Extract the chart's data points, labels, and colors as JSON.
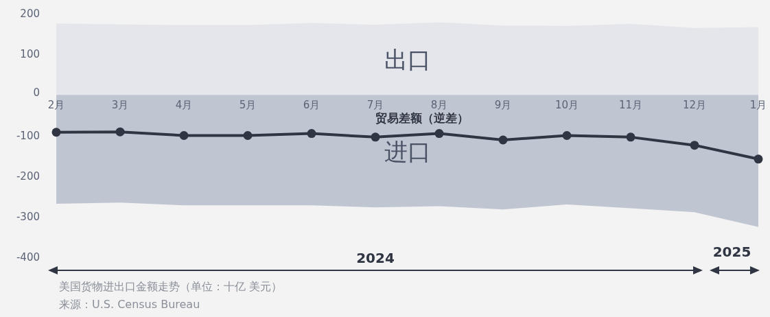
{
  "chart_data": {
    "type": "area",
    "categories": [
      "2月",
      "3月",
      "4月",
      "5月",
      "6月",
      "7月",
      "8月",
      "9月",
      "10月",
      "11月",
      "12月",
      "1月"
    ],
    "series": [
      {
        "name": "出口",
        "color": "#e5e6eb",
        "values": [
          176,
          174,
          172,
          172,
          177,
          173,
          179,
          171,
          170,
          175,
          165,
          167
        ]
      },
      {
        "name": "进口",
        "color": "#c0c6d1",
        "values": [
          -268,
          -265,
          -272,
          -272,
          -272,
          -277,
          -274,
          -282,
          -270,
          -279,
          -289,
          -325
        ]
      },
      {
        "name": "贸易差额（逆差）",
        "type": "line",
        "marker": "circle",
        "color": "#2f3542",
        "values": [
          -92,
          -91,
          -100,
          -100,
          -95,
          -104,
          -95,
          -111,
          -100,
          -104,
          -124,
          -158
        ]
      }
    ],
    "ylim": [
      -400,
      200
    ],
    "yticks": [
      -400,
      -300,
      -200,
      -100,
      0,
      100,
      200
    ],
    "line_style": "solid",
    "grid": false,
    "legend": false,
    "annotations": [
      "2024",
      "2025",
      "美国货物进出口金额走势（单位：十亿 美元）",
      "来源：U.S. Census Bureau"
    ]
  }
}
